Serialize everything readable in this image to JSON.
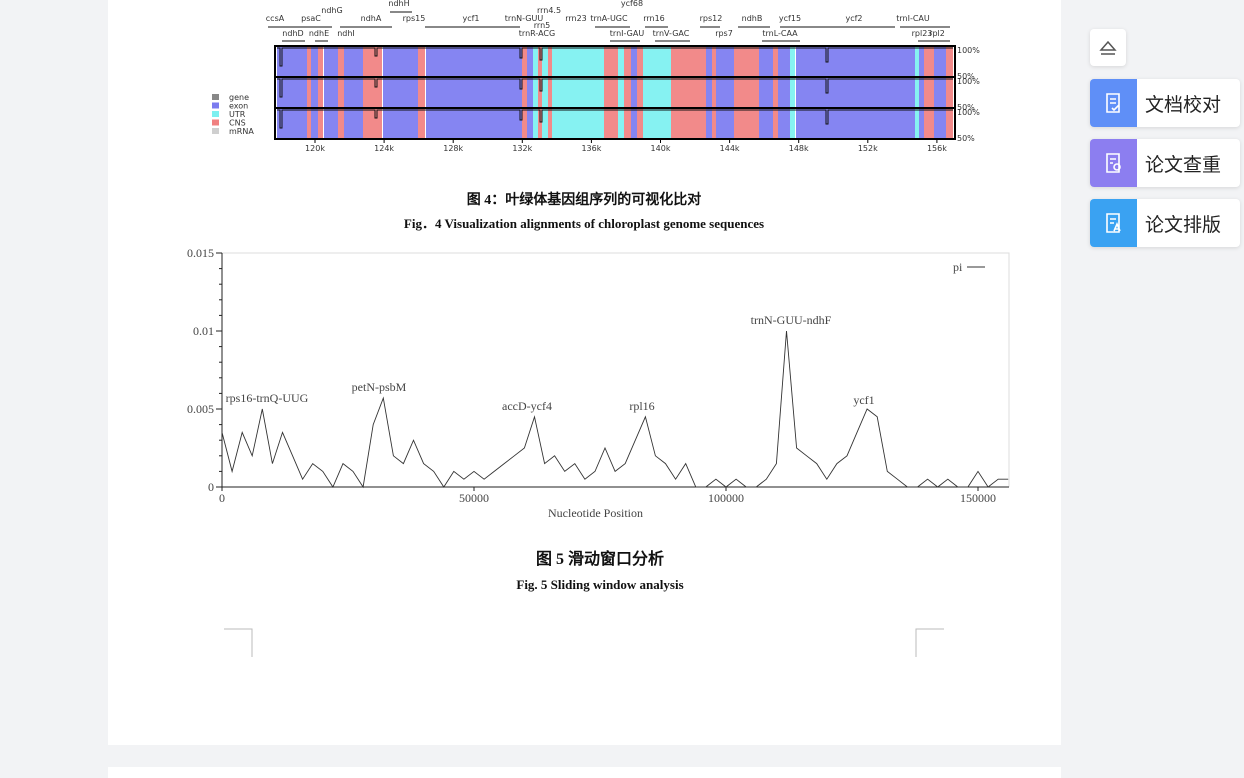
{
  "figure4": {
    "gene_labels": [
      "ccsA",
      "psaC",
      "ndhG",
      "ndhH",
      "ndhA",
      "rps15",
      "ycf1",
      "trnN-GUU",
      "rrn4.5",
      "rrn23",
      "trnA-UGC",
      "ycf68",
      "rrn16",
      "rps12",
      "ndhB",
      "ycf15",
      "ycf2",
      "trnI-CAU",
      "ndhD",
      "ndhE",
      "ndhI",
      "trnR-ACG",
      "rrn5",
      "trnI-GAU",
      "trnV-GAC",
      "rps7",
      "trnL-CAA",
      "rpl23",
      "rpl2"
    ],
    "legend": [
      "gene",
      "exon",
      "UTR",
      "CNS",
      "mRNA"
    ],
    "track_ticks": [
      "100%",
      "50%",
      "100%",
      "50%",
      "100%",
      "50%"
    ],
    "x_labels": [
      "120k",
      "124k",
      "128k",
      "132k",
      "136k",
      "140k",
      "144k",
      "148k",
      "152k",
      "156k"
    ],
    "caption_cn": "图 4：叶绿体基因组序列的可视化比对",
    "caption_en": "Fig．4 Visualization alignments of chloroplast genome sequences"
  },
  "chart_data": {
    "type": "line",
    "x_label": "Nucleotide Position",
    "x": [
      0,
      2000,
      4000,
      6000,
      8000,
      10000,
      12000,
      14000,
      16000,
      18000,
      20000,
      22000,
      24000,
      26000,
      28000,
      30000,
      32000,
      34000,
      36000,
      38000,
      40000,
      42000,
      44000,
      46000,
      48000,
      50000,
      52000,
      54000,
      56000,
      58000,
      60000,
      62000,
      64000,
      66000,
      68000,
      70000,
      72000,
      74000,
      76000,
      78000,
      80000,
      82000,
      84000,
      86000,
      88000,
      90000,
      92000,
      94000,
      96000,
      98000,
      100000,
      102000,
      104000,
      106000,
      108000,
      110000,
      112000,
      114000,
      116000,
      118000,
      120000,
      122000,
      124000,
      126000,
      128000,
      130000,
      132000,
      134000,
      136000,
      138000,
      140000,
      142000,
      144000,
      146000,
      148000,
      150000,
      152000,
      154000,
      156000
    ],
    "series": [
      {
        "name": "pi",
        "color": "#333333",
        "values": [
          0.0035,
          0.001,
          0.0035,
          0.002,
          0.005,
          0.0015,
          0.0035,
          0.002,
          0.0005,
          0.0015,
          0.001,
          0,
          0.0015,
          0.001,
          0,
          0.004,
          0.0057,
          0.002,
          0.0015,
          0.003,
          0.0015,
          0.001,
          0,
          0.001,
          0.0005,
          0.001,
          0.0005,
          0.001,
          0.0015,
          0.002,
          0.0025,
          0.0045,
          0.0015,
          0.002,
          0.001,
          0.0015,
          0.0005,
          0.001,
          0.0025,
          0.001,
          0.0015,
          0.003,
          0.0045,
          0.002,
          0.0015,
          0.0005,
          0.0015,
          0,
          0,
          0.0005,
          0,
          0.0005,
          0,
          0,
          0.0005,
          0.0015,
          0.01,
          0.0025,
          0.002,
          0.0015,
          0.0005,
          0.0015,
          0.002,
          0.0035,
          0.005,
          0.0045,
          0.001,
          0.0005,
          0,
          0,
          0.0005,
          0,
          0.0005,
          0,
          0,
          0.001,
          0,
          0.0005,
          0.0005
        ]
      }
    ],
    "xlim": [
      0,
      156150
    ],
    "ylim": [
      0,
      0.015
    ],
    "xticks": [
      0,
      50000,
      100000,
      150000
    ],
    "yticks": [
      0,
      0.005,
      0.01,
      0.015
    ],
    "legend": "upper right",
    "annotations": [
      "rps16-trnQ-UUG",
      "petN-psbM",
      "accD-ycf4",
      "rpl16",
      "trnN-GUU-ndhF",
      "ycf1"
    ]
  },
  "figure5": {
    "caption_cn": "图 5  滑动窗口分析",
    "caption_en": "Fig. 5 Sliding window analysis"
  },
  "sidebar": {
    "buttons": [
      "文档校对",
      "论文查重",
      "论文排版"
    ]
  }
}
